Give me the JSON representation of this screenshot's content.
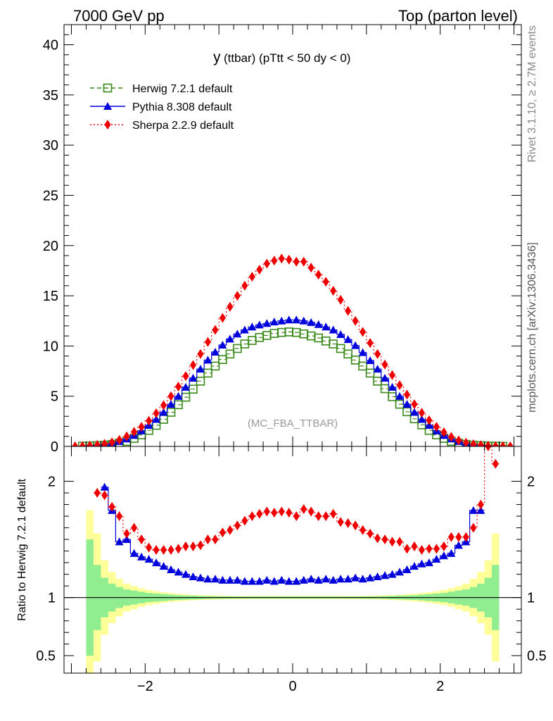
{
  "header": {
    "left": "7000 GeV pp",
    "right": "Top (parton level)"
  },
  "side_labels": {
    "rivet": "Rivet 3.1.10, ≥ 2.7M events",
    "mcplots": "mcplots.cern.ch [arXiv:1306.3436]"
  },
  "watermark": "(MC_FBA_TTBAR)",
  "colors": {
    "herwig": "#3a8a1a",
    "pythia": "#0000dd",
    "sherpa": "#ee0000",
    "band_inner": "#90ee90",
    "band_outer": "#ffff99"
  },
  "chart_data": [
    {
      "type": "line",
      "panel": "main",
      "title_main": "y",
      "title_detail": "(ttbar) (pTtt < 50 dy < 0)",
      "xlim": [
        -3.1,
        3.1
      ],
      "ylim": [
        0,
        42
      ],
      "yticks": [
        0,
        5,
        10,
        15,
        20,
        25,
        30,
        35,
        40
      ],
      "xticks": [
        -2,
        0,
        2
      ],
      "legend_position": "top-left",
      "series": [
        {
          "name": "Herwig 7.2.1 default",
          "marker": "open-square",
          "line": "dashed",
          "x": [
            -2.85,
            -2.75,
            -2.65,
            -2.55,
            -2.45,
            -2.35,
            -2.25,
            -2.15,
            -2.05,
            -1.95,
            -1.85,
            -1.75,
            -1.65,
            -1.55,
            -1.45,
            -1.35,
            -1.25,
            -1.15,
            -1.05,
            -0.95,
            -0.85,
            -0.75,
            -0.65,
            -0.55,
            -0.45,
            -0.35,
            -0.25,
            -0.15,
            -0.05,
            0.05,
            0.15,
            0.25,
            0.35,
            0.45,
            0.55,
            0.65,
            0.75,
            0.85,
            0.95,
            1.05,
            1.15,
            1.25,
            1.35,
            1.45,
            1.55,
            1.65,
            1.75,
            1.85,
            1.95,
            2.05,
            2.15,
            2.25,
            2.35,
            2.45,
            2.55,
            2.65,
            2.75,
            2.85
          ],
          "y": [
            0.02,
            0.04,
            0.07,
            0.12,
            0.2,
            0.32,
            0.5,
            0.8,
            1.15,
            1.6,
            2.1,
            2.7,
            3.4,
            4.15,
            4.9,
            5.7,
            6.5,
            7.3,
            8.0,
            8.65,
            9.2,
            9.75,
            10.2,
            10.55,
            10.85,
            11.05,
            11.25,
            11.35,
            11.4,
            11.35,
            11.2,
            11.0,
            10.8,
            10.5,
            10.2,
            9.75,
            9.2,
            8.6,
            8.0,
            7.3,
            6.5,
            5.75,
            4.95,
            4.2,
            3.45,
            2.75,
            2.15,
            1.6,
            1.15,
            0.8,
            0.5,
            0.32,
            0.2,
            0.12,
            0.07,
            0.04,
            0.02,
            0.01
          ]
        },
        {
          "name": "Pythia 8.308 default",
          "marker": "filled-triangle",
          "line": "solid",
          "x": [
            -2.85,
            -2.75,
            -2.65,
            -2.55,
            -2.45,
            -2.35,
            -2.25,
            -2.15,
            -2.05,
            -1.95,
            -1.85,
            -1.75,
            -1.65,
            -1.55,
            -1.45,
            -1.35,
            -1.25,
            -1.15,
            -1.05,
            -0.95,
            -0.85,
            -0.75,
            -0.65,
            -0.55,
            -0.45,
            -0.35,
            -0.25,
            -0.15,
            -0.05,
            0.05,
            0.15,
            0.25,
            0.35,
            0.45,
            0.55,
            0.65,
            0.75,
            0.85,
            0.95,
            1.05,
            1.15,
            1.25,
            1.35,
            1.45,
            1.55,
            1.65,
            1.75,
            1.85,
            1.95,
            2.05,
            2.15,
            2.25,
            2.35,
            2.45,
            2.55,
            2.65,
            2.75,
            2.85
          ],
          "y": [
            0.02,
            0.05,
            0.1,
            0.2,
            0.35,
            0.5,
            0.75,
            1.1,
            1.55,
            2.1,
            2.7,
            3.4,
            4.2,
            5.0,
            5.9,
            6.8,
            7.7,
            8.6,
            9.4,
            10.1,
            10.7,
            11.2,
            11.6,
            11.9,
            12.1,
            12.25,
            12.4,
            12.5,
            12.6,
            12.6,
            12.5,
            12.35,
            12.15,
            11.9,
            11.6,
            11.15,
            10.65,
            10.05,
            9.35,
            8.55,
            7.7,
            6.8,
            5.9,
            5.0,
            4.2,
            3.4,
            2.7,
            2.1,
            1.55,
            1.1,
            0.75,
            0.5,
            0.35,
            0.2,
            0.1,
            0.05,
            0.02,
            0.01
          ]
        },
        {
          "name": "Sherpa 2.2.9 default",
          "marker": "filled-diamond",
          "line": "dotted",
          "x": [
            -2.95,
            -2.85,
            -2.75,
            -2.65,
            -2.55,
            -2.45,
            -2.35,
            -2.25,
            -2.15,
            -2.05,
            -1.95,
            -1.85,
            -1.75,
            -1.65,
            -1.55,
            -1.45,
            -1.35,
            -1.25,
            -1.15,
            -1.05,
            -0.95,
            -0.85,
            -0.75,
            -0.65,
            -0.55,
            -0.45,
            -0.35,
            -0.25,
            -0.15,
            -0.05,
            0.05,
            0.15,
            0.25,
            0.35,
            0.45,
            0.55,
            0.65,
            0.75,
            0.85,
            0.95,
            1.05,
            1.15,
            1.25,
            1.35,
            1.45,
            1.55,
            1.65,
            1.75,
            1.85,
            1.95,
            2.05,
            2.15,
            2.25,
            2.35,
            2.45,
            2.55,
            2.65,
            2.75,
            2.85,
            2.95
          ],
          "y": [
            0.01,
            0.03,
            0.08,
            0.15,
            0.25,
            0.4,
            0.65,
            1.0,
            1.45,
            1.95,
            2.55,
            3.3,
            4.1,
            5.0,
            5.95,
            7.0,
            8.1,
            9.2,
            10.4,
            11.6,
            12.8,
            13.9,
            15.0,
            16.0,
            16.9,
            17.6,
            18.2,
            18.5,
            18.7,
            18.6,
            18.4,
            18.4,
            17.8,
            17.1,
            16.4,
            15.5,
            14.6,
            13.5,
            12.5,
            11.4,
            10.3,
            9.2,
            8.15,
            7.1,
            6.1,
            5.15,
            4.2,
            3.35,
            2.6,
            1.95,
            1.4,
            0.95,
            0.6,
            0.37,
            0.22,
            0.13,
            0.07,
            0.03,
            0.02,
            0.01
          ]
        }
      ]
    },
    {
      "type": "line",
      "panel": "ratio",
      "ylabel": "Ratio to Herwig 7.2.1 default",
      "xlim": [
        -3.1,
        3.1
      ],
      "ylim": [
        0.35,
        2.3
      ],
      "yticks": [
        0.5,
        1,
        2
      ],
      "xticks": [
        -2,
        0,
        2
      ],
      "band_x_edges": [
        -2.8,
        -2.7,
        -2.6,
        -2.5,
        -2.4,
        -2.3,
        -2.2,
        -2.1,
        -2.0,
        -1.9,
        -1.8,
        -1.7,
        -1.6,
        -1.5,
        -1.4,
        -1.3,
        -1.2,
        -1.1,
        -1.0,
        -0.9,
        -0.8,
        -0.7,
        -0.6,
        -0.5,
        -0.4,
        -0.3,
        -0.2,
        -0.1,
        0.0,
        0.1,
        0.2,
        0.3,
        0.4,
        0.5,
        0.6,
        0.7,
        0.8,
        0.9,
        1.0,
        1.1,
        1.2,
        1.3,
        1.4,
        1.5,
        1.6,
        1.7,
        1.8,
        1.9,
        2.0,
        2.1,
        2.2,
        2.3,
        2.4,
        2.5,
        2.6,
        2.7,
        2.8
      ],
      "band_inner_half": [
        0.5,
        0.28,
        0.17,
        0.12,
        0.09,
        0.07,
        0.06,
        0.05,
        0.04,
        0.035,
        0.03,
        0.025,
        0.02,
        0.018,
        0.016,
        0.014,
        0.012,
        0.01,
        0.01,
        0.01,
        0.008,
        0.008,
        0.008,
        0.008,
        0.008,
        0.008,
        0.008,
        0.008,
        0.008,
        0.008,
        0.008,
        0.008,
        0.008,
        0.008,
        0.008,
        0.008,
        0.008,
        0.01,
        0.01,
        0.01,
        0.012,
        0.014,
        0.016,
        0.018,
        0.02,
        0.025,
        0.03,
        0.035,
        0.04,
        0.05,
        0.06,
        0.07,
        0.09,
        0.12,
        0.17,
        0.28
      ],
      "band_outer_half": [
        0.75,
        0.55,
        0.32,
        0.22,
        0.16,
        0.12,
        0.1,
        0.08,
        0.065,
        0.055,
        0.045,
        0.038,
        0.032,
        0.028,
        0.024,
        0.021,
        0.019,
        0.017,
        0.016,
        0.015,
        0.014,
        0.014,
        0.013,
        0.013,
        0.013,
        0.013,
        0.013,
        0.013,
        0.013,
        0.013,
        0.013,
        0.013,
        0.013,
        0.013,
        0.013,
        0.014,
        0.014,
        0.015,
        0.016,
        0.017,
        0.019,
        0.021,
        0.024,
        0.028,
        0.032,
        0.038,
        0.045,
        0.055,
        0.065,
        0.08,
        0.1,
        0.12,
        0.16,
        0.22,
        0.32,
        0.55
      ],
      "series": [
        {
          "name": "Pythia 8.308 default",
          "x": [
            -2.55,
            -2.45,
            -2.35,
            -2.25,
            -2.15,
            -2.05,
            -1.95,
            -1.85,
            -1.75,
            -1.65,
            -1.55,
            -1.45,
            -1.35,
            -1.25,
            -1.15,
            -1.05,
            -0.95,
            -0.85,
            -0.75,
            -0.65,
            -0.55,
            -0.45,
            -0.35,
            -0.25,
            -0.15,
            -0.05,
            0.05,
            0.15,
            0.25,
            0.35,
            0.45,
            0.55,
            0.65,
            0.75,
            0.85,
            0.95,
            1.05,
            1.15,
            1.25,
            1.35,
            1.45,
            1.55,
            1.65,
            1.75,
            1.85,
            1.95,
            2.05,
            2.15,
            2.25,
            2.35,
            2.45,
            2.55
          ],
          "y": [
            1.95,
            1.75,
            1.48,
            1.5,
            1.38,
            1.35,
            1.33,
            1.3,
            1.27,
            1.24,
            1.22,
            1.2,
            1.18,
            1.17,
            1.16,
            1.16,
            1.15,
            1.15,
            1.15,
            1.14,
            1.14,
            1.14,
            1.15,
            1.14,
            1.15,
            1.14,
            1.14,
            1.15,
            1.16,
            1.15,
            1.16,
            1.15,
            1.16,
            1.16,
            1.17,
            1.16,
            1.17,
            1.18,
            1.19,
            1.2,
            1.22,
            1.24,
            1.27,
            1.29,
            1.3,
            1.33,
            1.36,
            1.38,
            1.45,
            1.48,
            1.75,
            1.75
          ]
        },
        {
          "name": "Sherpa 2.2.9 default",
          "x": [
            -2.65,
            -2.55,
            -2.45,
            -2.35,
            -2.25,
            -2.15,
            -2.05,
            -1.95,
            -1.85,
            -1.75,
            -1.65,
            -1.55,
            -1.45,
            -1.35,
            -1.25,
            -1.15,
            -1.05,
            -0.95,
            -0.85,
            -0.75,
            -0.65,
            -0.55,
            -0.45,
            -0.35,
            -0.25,
            -0.15,
            -0.05,
            0.05,
            0.15,
            0.25,
            0.35,
            0.45,
            0.55,
            0.65,
            0.75,
            0.85,
            0.95,
            1.05,
            1.15,
            1.25,
            1.35,
            1.45,
            1.55,
            1.65,
            1.75,
            1.85,
            1.95,
            2.05,
            2.15,
            2.25,
            2.35,
            2.45,
            2.55,
            2.65,
            2.75
          ],
          "y": [
            1.9,
            1.88,
            1.78,
            1.7,
            1.55,
            1.6,
            1.5,
            1.43,
            1.41,
            1.41,
            1.41,
            1.42,
            1.44,
            1.44,
            1.45,
            1.5,
            1.5,
            1.56,
            1.58,
            1.62,
            1.66,
            1.7,
            1.72,
            1.74,
            1.73,
            1.74,
            1.73,
            1.7,
            1.76,
            1.74,
            1.7,
            1.7,
            1.72,
            1.65,
            1.64,
            1.62,
            1.58,
            1.55,
            1.51,
            1.5,
            1.48,
            1.48,
            1.42,
            1.44,
            1.41,
            1.42,
            1.42,
            1.44,
            1.52,
            1.52,
            1.52,
            1.6,
            1.8,
            2.3,
            2.15
          ]
        }
      ]
    }
  ]
}
